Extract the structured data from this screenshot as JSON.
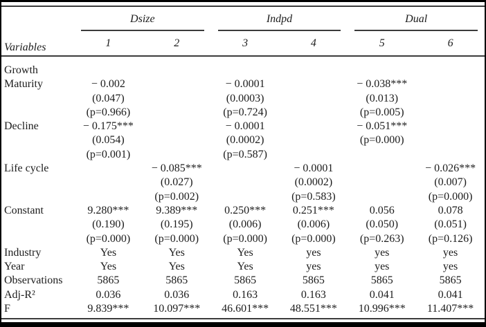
{
  "table": {
    "header": {
      "variables_label": "Variables",
      "groups": [
        {
          "label": "Dsize",
          "columns": [
            "1",
            "2"
          ]
        },
        {
          "label": "Indpd",
          "columns": [
            "3",
            "4"
          ]
        },
        {
          "label": "Dual",
          "columns": [
            "5",
            "6"
          ]
        }
      ]
    },
    "rows": [
      {
        "label": "Growth",
        "cells": [
          "",
          "",
          "",
          "",
          "",
          ""
        ]
      },
      {
        "label": "Maturity",
        "cells": [
          "− 0.002",
          "",
          "− 0.0001",
          "",
          "− 0.038***",
          ""
        ]
      },
      {
        "label": "",
        "cells": [
          "(0.047)",
          "",
          "(0.0003)",
          "",
          "(0.013)",
          ""
        ]
      },
      {
        "label": "",
        "cells": [
          "(p=0.966)",
          "",
          "(p=0.724)",
          "",
          "(p=0.005)",
          ""
        ]
      },
      {
        "label": "Decline",
        "cells": [
          "− 0.175***",
          "",
          "− 0.0001",
          "",
          "− 0.051***",
          ""
        ]
      },
      {
        "label": "",
        "cells": [
          "(0.054)",
          "",
          "(0.0002)",
          "",
          "(p=0.000)",
          ""
        ]
      },
      {
        "label": "",
        "cells": [
          "(p=0.001)",
          "",
          "(p=0.587)",
          "",
          "",
          ""
        ]
      },
      {
        "label": "Life cycle",
        "cells": [
          "",
          "− 0.085***",
          "",
          "− 0.0001",
          "",
          "− 0.026***"
        ]
      },
      {
        "label": "",
        "cells": [
          "",
          "(0.027)",
          "",
          "(0.0002)",
          "",
          "(0.007)"
        ]
      },
      {
        "label": "",
        "cells": [
          "",
          "(p=0.002)",
          "",
          "(p=0.583)",
          "",
          "(p=0.000)"
        ]
      },
      {
        "label": "Constant",
        "cells": [
          "9.280***",
          "9.389***",
          "0.250***",
          "0.251***",
          "0.056",
          "0.078"
        ]
      },
      {
        "label": "",
        "cells": [
          "(0.190)",
          "(0.195)",
          "(0.006)",
          "(0.006)",
          "(0.050)",
          "(0.051)"
        ]
      },
      {
        "label": "",
        "cells": [
          "(p=0.000)",
          "(p=0.000)",
          "(p=0.000)",
          "(p=0.000)",
          "(p=0.263)",
          "(p=0.126)"
        ]
      },
      {
        "label": "Industry",
        "cells": [
          "Yes",
          "Yes",
          "Yes",
          "yes",
          "yes",
          "yes"
        ]
      },
      {
        "label": "Year",
        "cells": [
          "Yes",
          "Yes",
          "Yes",
          "yes",
          "yes",
          "yes"
        ]
      },
      {
        "label": "Observations",
        "cells": [
          "5865",
          "5865",
          "5865",
          "5865",
          "5865",
          "5865"
        ]
      },
      {
        "label": "Adj-R²",
        "cells": [
          "0.036",
          "0.036",
          "0.163",
          "0.163",
          "0.041",
          "0.041"
        ]
      },
      {
        "label": "F",
        "cells": [
          "9.839***",
          "10.097***",
          "46.601***",
          "48.551***",
          "10.996***",
          "11.407***"
        ]
      }
    ]
  },
  "colors": {
    "text": "#1c1c1c",
    "rule": "#3a3a3a",
    "frame": "#000000",
    "background": "#ffffff"
  }
}
